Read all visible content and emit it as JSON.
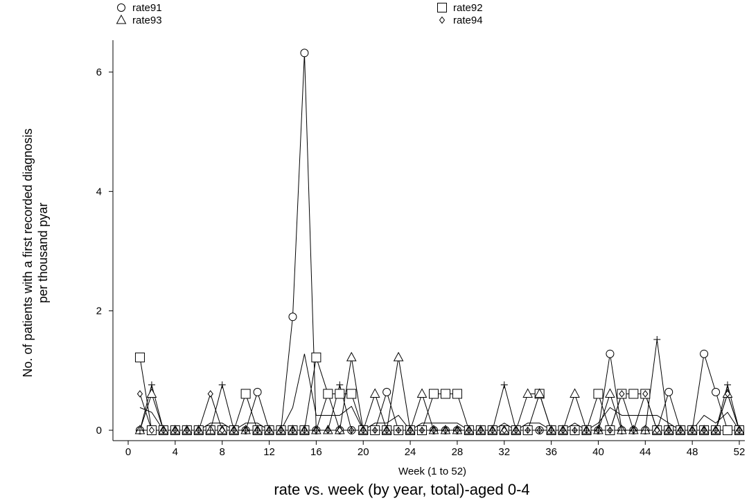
{
  "chart_data": {
    "type": "line",
    "title": "rate vs. week (by year, total)-aged 0-4",
    "xlabel": "Week (1 to 52)",
    "ylabel_line1": "No. of patients with a first recorded diagnosis",
    "ylabel_line2": "per thousand pyar",
    "xlim": [
      0,
      52
    ],
    "ylim": [
      0,
      6.6
    ],
    "xticks": [
      0,
      4,
      8,
      12,
      16,
      20,
      24,
      28,
      32,
      36,
      40,
      44,
      48,
      52
    ],
    "yticks": [
      0,
      2,
      4,
      6
    ],
    "legend_position": "top",
    "x": [
      1,
      2,
      3,
      4,
      5,
      6,
      7,
      8,
      9,
      10,
      11,
      12,
      13,
      14,
      15,
      16,
      17,
      18,
      19,
      20,
      21,
      22,
      23,
      24,
      25,
      26,
      27,
      28,
      29,
      30,
      31,
      32,
      33,
      34,
      35,
      36,
      37,
      38,
      39,
      40,
      41,
      42,
      43,
      44,
      45,
      46,
      47,
      48,
      49,
      50,
      51,
      52
    ],
    "series": [
      {
        "name": "rate91",
        "marker": "circle",
        "values": [
          0,
          0,
          0,
          0,
          0,
          0,
          0,
          0,
          0,
          0,
          0.64,
          0,
          0,
          1.9,
          6.32,
          0,
          0.62,
          0,
          0,
          0,
          0,
          0.64,
          0,
          0,
          0,
          0,
          0,
          0,
          0,
          0,
          0,
          0,
          0,
          0,
          0,
          0,
          0,
          0,
          0,
          0,
          1.28,
          0,
          0,
          0,
          0,
          0.64,
          0,
          0,
          1.28,
          0.64,
          0,
          0
        ]
      },
      {
        "name": "rate92",
        "marker": "square",
        "values": [
          1.22,
          0,
          0,
          0,
          0,
          0,
          0,
          0,
          0,
          0.61,
          0,
          0,
          0,
          0,
          0,
          1.22,
          0.61,
          0.61,
          0.61,
          0,
          0,
          0,
          0,
          0,
          0,
          0.61,
          0.61,
          0.61,
          0,
          0,
          0,
          0,
          0,
          0,
          0.61,
          0,
          0,
          0,
          0,
          0.61,
          0,
          0.61,
          0.61,
          0.61,
          0,
          0,
          0,
          0,
          0,
          0,
          0,
          0
        ]
      },
      {
        "name": "rate93",
        "marker": "triangle",
        "values": [
          0,
          0.61,
          0,
          0,
          0,
          0,
          0,
          0,
          0,
          0,
          0,
          0,
          0,
          0,
          0,
          0,
          0,
          0,
          1.22,
          0,
          0.61,
          0,
          1.22,
          0,
          0.61,
          0,
          0,
          0,
          0,
          0,
          0,
          0,
          0,
          0.61,
          0.61,
          0,
          0,
          0.61,
          0,
          0,
          0.61,
          0,
          0,
          0,
          0,
          0,
          0,
          0,
          0,
          0,
          0.61,
          0
        ]
      },
      {
        "name": "rate94",
        "marker": "diamond",
        "values": [
          0.61,
          0,
          0,
          0,
          0,
          0,
          0.61,
          0,
          0,
          0,
          0,
          0,
          0,
          0,
          0,
          0,
          0,
          0,
          0,
          0,
          0,
          0,
          0,
          0,
          0,
          0,
          0,
          0,
          0,
          0,
          0,
          0,
          0,
          0,
          0,
          0,
          0,
          0,
          0,
          0,
          0,
          0.61,
          0,
          0.61,
          0,
          0,
          0,
          0,
          0,
          0,
          0.61,
          0
        ]
      },
      {
        "name": "",
        "marker": "plus",
        "values": [
          0,
          0.76,
          0,
          0,
          0,
          0,
          0,
          0.76,
          0,
          0,
          0,
          0,
          0,
          0,
          0,
          0,
          0,
          0.76,
          0,
          0,
          0,
          0,
          0,
          0,
          0,
          0,
          0,
          0,
          0,
          0,
          0,
          0.76,
          0,
          0,
          0,
          0,
          0,
          0,
          0,
          0,
          0,
          0,
          0,
          0,
          1.52,
          0,
          0,
          0,
          0,
          0,
          0.76,
          0
        ]
      },
      {
        "name": "",
        "marker": "none",
        "values": [
          0.38,
          0.3,
          0,
          0,
          0,
          0,
          0.12,
          0.12,
          0,
          0.12,
          0.12,
          0,
          0,
          0.38,
          1.28,
          0.25,
          0.25,
          0.25,
          0.4,
          0,
          0.12,
          0.12,
          0.25,
          0,
          0.12,
          0.12,
          0.12,
          0.12,
          0,
          0,
          0,
          0.12,
          0,
          0.12,
          0.12,
          0,
          0,
          0.12,
          0,
          0.12,
          0.38,
          0.25,
          0.25,
          0.25,
          0.25,
          0.12,
          0,
          0,
          0.25,
          0.12,
          0.3,
          0
        ]
      }
    ]
  }
}
